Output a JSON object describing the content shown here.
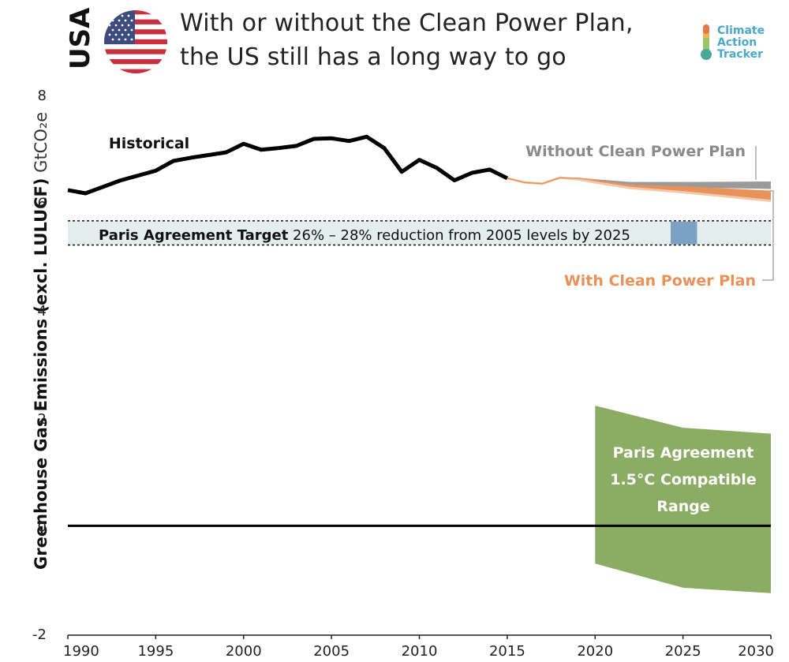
{
  "header": {
    "country": "USA",
    "title_line1": "With or without the Clean Power Plan,",
    "title_line2": "the US still has a long way to go",
    "logo": [
      "Climate",
      "Action",
      "Tracker"
    ],
    "flag_icon": "usa-flag-icon",
    "thermometer_icon": "thermometer-icon"
  },
  "colors": {
    "historical": "#000000",
    "without_cpp": "#9a9a9a",
    "with_cpp": "#e8925a",
    "with_cpp_light": "#f3c9ae",
    "paris_range": "#8aac63",
    "target_box": "#7ba2c4",
    "target_band": "#e4eeee",
    "logo": "#4aa8c9"
  },
  "chart_data": {
    "type": "area",
    "ylabel_bold": "Greenhouse Gas Emissions (excl. LULUCF)",
    "ylabel_unit": "GtCO₂e",
    "xlim": [
      1990,
      2030
    ],
    "ylim": [
      -2,
      8
    ],
    "xticks": [
      "1990",
      "1995",
      "2000",
      "2005",
      "2010",
      "2015",
      "2020",
      "2025",
      "2030"
    ],
    "yticks": [
      "-2",
      "0",
      "2",
      "4",
      "6",
      "8"
    ],
    "grid": false,
    "series": [
      {
        "name": "Historical",
        "x": [
          1990,
          1991,
          1992,
          1993,
          1994,
          1995,
          1996,
          1997,
          1998,
          1999,
          2000,
          2001,
          2002,
          2003,
          2004,
          2005,
          2006,
          2007,
          2008,
          2009,
          2010,
          2011,
          2012,
          2013,
          2014,
          2015
        ],
        "values": [
          6.23,
          6.17,
          6.29,
          6.41,
          6.5,
          6.59,
          6.77,
          6.83,
          6.88,
          6.93,
          7.09,
          6.98,
          7.01,
          7.05,
          7.18,
          7.19,
          7.14,
          7.22,
          7.01,
          6.57,
          6.79,
          6.64,
          6.41,
          6.55,
          6.61,
          6.45
        ]
      },
      {
        "name": "Without Clean Power Plan",
        "x": [
          2015,
          2016,
          2017,
          2018,
          2019,
          2020,
          2022,
          2025,
          2030
        ],
        "low": [
          6.45,
          6.37,
          6.35,
          6.46,
          6.45,
          6.41,
          6.33,
          6.28,
          6.25
        ],
        "high": [
          6.45,
          6.37,
          6.35,
          6.46,
          6.45,
          6.43,
          6.38,
          6.38,
          6.39
        ]
      },
      {
        "name": "With Clean Power Plan",
        "x": [
          2015,
          2016,
          2017,
          2018,
          2019,
          2020,
          2022,
          2025,
          2030
        ],
        "low": [
          6.45,
          6.37,
          6.35,
          6.46,
          6.43,
          6.37,
          6.27,
          6.19,
          6.03
        ],
        "high": [
          6.45,
          6.37,
          6.35,
          6.46,
          6.45,
          6.42,
          6.33,
          6.3,
          6.22
        ]
      },
      {
        "name": "Paris Agreement 1.5°C Compatible Range",
        "x": [
          2020,
          2025,
          2030
        ],
        "low": [
          -0.7,
          -1.15,
          -1.25
        ],
        "high": [
          2.23,
          1.82,
          1.71
        ]
      }
    ],
    "paris_target": {
      "bold": "Paris Agreement Target",
      "text": "26% – 28% reduction from 2005 levels by 2025",
      "low": 5.21,
      "high": 5.66,
      "box_x": [
        2024.3,
        2025.8
      ]
    },
    "annotations": {
      "historical": "Historical",
      "without_cpp": "Without Clean Power Plan",
      "with_cpp": "With Clean Power Plan",
      "paris_range_lines": [
        "Paris Agreement",
        "1.5°C Compatible",
        "Range"
      ]
    }
  }
}
